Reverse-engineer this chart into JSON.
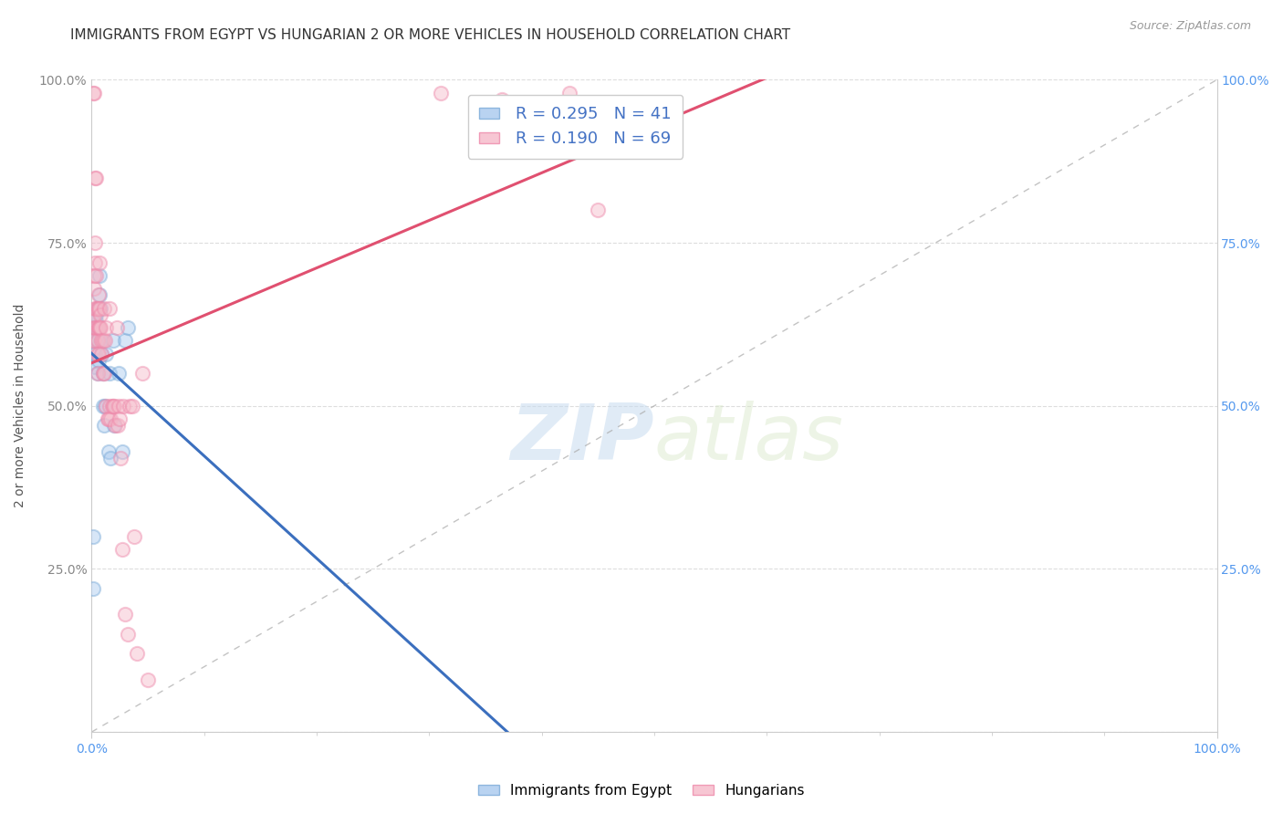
{
  "title": "IMMIGRANTS FROM EGYPT VS HUNGARIAN 2 OR MORE VEHICLES IN HOUSEHOLD CORRELATION CHART",
  "source": "Source: ZipAtlas.com",
  "ylabel": "2 or more Vehicles in Household",
  "xlabel": "",
  "R_egypt": 0.295,
  "N_egypt": 41,
  "R_hungarian": 0.19,
  "N_hungarian": 69,
  "egypt_color": "#A8C8EE",
  "hungarian_color": "#F5B8C8",
  "egypt_edge_color": "#7AAAD8",
  "hungarian_edge_color": "#EE88AA",
  "egypt_line_color": "#3B6FBE",
  "hungarian_line_color": "#E05070",
  "legend_egypt": "Immigrants from Egypt",
  "legend_hungarian": "Hungarians",
  "egypt_x": [
    0.001,
    0.001,
    0.002,
    0.002,
    0.002,
    0.003,
    0.003,
    0.003,
    0.003,
    0.004,
    0.004,
    0.004,
    0.004,
    0.005,
    0.005,
    0.005,
    0.005,
    0.005,
    0.006,
    0.006,
    0.006,
    0.006,
    0.007,
    0.007,
    0.008,
    0.008,
    0.009,
    0.01,
    0.01,
    0.011,
    0.012,
    0.013,
    0.015,
    0.016,
    0.017,
    0.019,
    0.02,
    0.024,
    0.027,
    0.03,
    0.032
  ],
  "egypt_y": [
    0.3,
    0.22,
    0.62,
    0.64,
    0.6,
    0.62,
    0.64,
    0.58,
    0.56,
    0.6,
    0.63,
    0.62,
    0.64,
    0.6,
    0.62,
    0.65,
    0.6,
    0.55,
    0.62,
    0.65,
    0.6,
    0.57,
    0.67,
    0.7,
    0.65,
    0.6,
    0.58,
    0.55,
    0.5,
    0.47,
    0.5,
    0.58,
    0.43,
    0.55,
    0.42,
    0.6,
    0.47,
    0.55,
    0.43,
    0.6,
    0.62
  ],
  "hungarian_x": [
    0.001,
    0.001,
    0.001,
    0.002,
    0.002,
    0.002,
    0.002,
    0.002,
    0.003,
    0.003,
    0.003,
    0.003,
    0.003,
    0.004,
    0.004,
    0.004,
    0.004,
    0.005,
    0.005,
    0.005,
    0.005,
    0.005,
    0.006,
    0.006,
    0.006,
    0.006,
    0.007,
    0.007,
    0.007,
    0.007,
    0.008,
    0.008,
    0.009,
    0.009,
    0.01,
    0.01,
    0.011,
    0.011,
    0.012,
    0.013,
    0.013,
    0.014,
    0.015,
    0.016,
    0.016,
    0.017,
    0.018,
    0.019,
    0.02,
    0.021,
    0.022,
    0.023,
    0.024,
    0.025,
    0.026,
    0.027,
    0.028,
    0.03,
    0.032,
    0.034,
    0.036,
    0.038,
    0.04,
    0.045,
    0.05,
    0.31,
    0.365,
    0.425,
    0.45
  ],
  "hungarian_y": [
    0.6,
    0.63,
    0.98,
    0.6,
    0.64,
    0.68,
    0.98,
    0.7,
    0.62,
    0.65,
    0.72,
    0.75,
    0.85,
    0.62,
    0.65,
    0.7,
    0.85,
    0.62,
    0.65,
    0.6,
    0.58,
    0.55,
    0.62,
    0.65,
    0.67,
    0.58,
    0.62,
    0.65,
    0.72,
    0.62,
    0.64,
    0.62,
    0.58,
    0.6,
    0.6,
    0.55,
    0.65,
    0.55,
    0.6,
    0.62,
    0.5,
    0.48,
    0.48,
    0.5,
    0.65,
    0.48,
    0.5,
    0.5,
    0.5,
    0.47,
    0.62,
    0.47,
    0.5,
    0.48,
    0.42,
    0.28,
    0.5,
    0.18,
    0.15,
    0.5,
    0.5,
    0.3,
    0.12,
    0.55,
    0.08,
    0.98,
    0.97,
    0.98,
    0.8
  ],
  "xlim": [
    0.0,
    1.0
  ],
  "ylim": [
    0.0,
    1.0
  ],
  "left_yticks": [
    0.0,
    0.25,
    0.5,
    0.75,
    1.0
  ],
  "left_yticklabels": [
    "",
    "25.0%",
    "50.0%",
    "75.0%",
    "100.0%"
  ],
  "right_yticks": [
    0.0,
    0.25,
    0.5,
    0.75,
    1.0
  ],
  "right_yticklabels": [
    "",
    "25.0%",
    "50.0%",
    "75.0%",
    "100.0%"
  ],
  "xtick_positions": [
    0.0,
    1.0
  ],
  "xticklabels": [
    "0.0%",
    "100.0%"
  ],
  "watermark_zip": "ZIP",
  "watermark_atlas": "atlas",
  "background_color": "#FFFFFF",
  "title_fontsize": 11,
  "marker_size": 120,
  "marker_alpha": 0.45,
  "marker_linewidth": 1.5,
  "grid_color": "#DDDDDD",
  "axis_color": "#CCCCCC",
  "left_tick_color": "#888888",
  "right_tick_color": "#5599EE",
  "bottom_tick_color": "#5599EE",
  "diagonal_color": "#AAAAAA"
}
